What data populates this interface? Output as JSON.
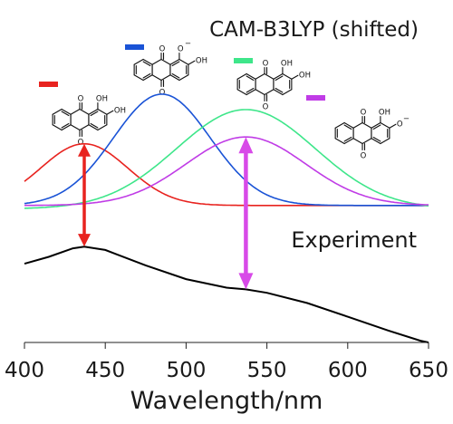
{
  "chart_data": {
    "type": "line",
    "title": "CAM-B3LYP (shifted)",
    "xlabel": "Wavelength/nm",
    "ylabel": "",
    "xlim": [
      400,
      650
    ],
    "ylim": [
      0,
      1
    ],
    "x_ticks": [
      400,
      450,
      500,
      550,
      600,
      650
    ],
    "x_tick_labels": [
      "400",
      "450",
      "500",
      "550",
      "600",
      "650"
    ],
    "grid": false,
    "annotation": "Experiment",
    "series": [
      {
        "color": "#e8231f",
        "peak_x": 437,
        "peak_y": 0.58,
        "width_nm": 27,
        "offset": 0.4
      },
      {
        "color": "#1a53d6",
        "peak_x": 485,
        "peak_y": 0.725,
        "width_nm": 30,
        "offset": 0.4
      },
      {
        "color": "#3ee68a",
        "peak_x": 537,
        "peak_y": 0.68,
        "width_nm": 43,
        "offset": 0.39
      },
      {
        "color": "#c03ce6",
        "peak_x": 537,
        "peak_y": 0.6,
        "width_nm": 37,
        "offset": 0.4
      },
      {
        "color": "#000000",
        "points": [
          [
            400,
            0.23
          ],
          [
            415,
            0.25
          ],
          [
            430,
            0.275
          ],
          [
            437,
            0.28
          ],
          [
            450,
            0.27
          ],
          [
            475,
            0.225
          ],
          [
            500,
            0.185
          ],
          [
            525,
            0.16
          ],
          [
            537,
            0.155
          ],
          [
            550,
            0.145
          ],
          [
            575,
            0.115
          ],
          [
            600,
            0.075
          ],
          [
            625,
            0.035
          ],
          [
            645,
            0.005
          ],
          [
            650,
            0.0
          ]
        ]
      }
    ],
    "arrows": [
      {
        "color": "#e8231f",
        "x": 437,
        "y_from": 0.28,
        "y_to": 0.58
      },
      {
        "color": "#d84ae8",
        "x": 537,
        "y_from": 0.155,
        "y_to": 0.6
      }
    ],
    "legend": [
      {
        "color": "#e8231f"
      },
      {
        "color": "#1a53d6"
      },
      {
        "color": "#3ee68a"
      },
      {
        "color": "#c03ce6"
      }
    ],
    "molecule_labels": {
      "oxygen": "O",
      "hydroxyl": "OH",
      "charge": "−"
    }
  }
}
